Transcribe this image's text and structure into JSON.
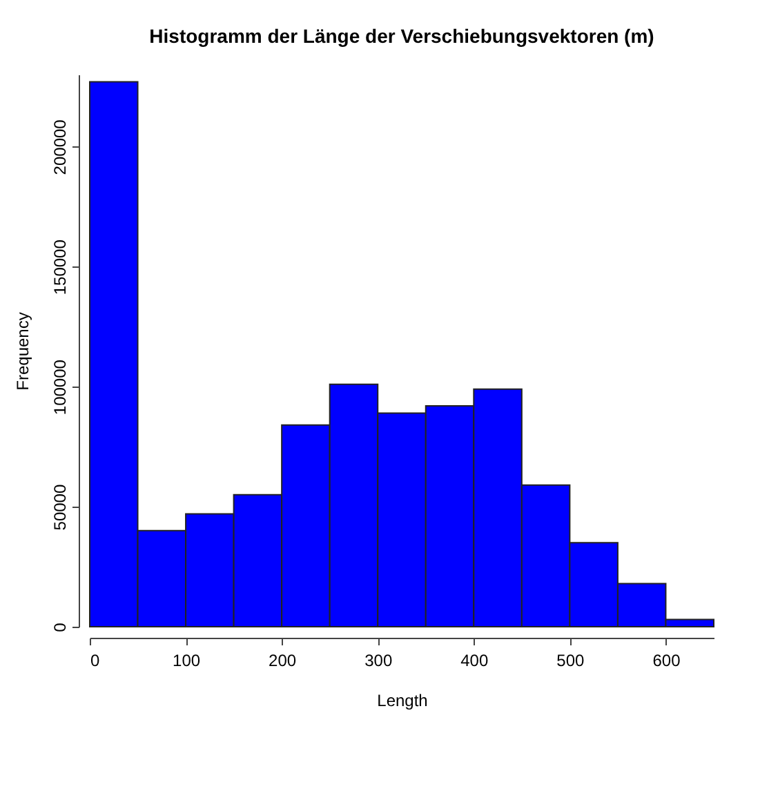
{
  "chart_data": {
    "type": "histogram",
    "title": "Histogramm der Länge der Verschiebungsvektoren (m)",
    "xlabel": "Length",
    "ylabel": "Frequency",
    "bins": [
      0,
      50,
      100,
      150,
      200,
      250,
      300,
      350,
      400,
      450,
      500,
      550,
      600,
      650
    ],
    "values": [
      227000,
      40000,
      47000,
      55000,
      84000,
      101000,
      89000,
      92000,
      99000,
      59000,
      35000,
      18000,
      3000
    ],
    "color": "#0000ff",
    "xlim": [
      0,
      650
    ],
    "xticks": [
      0,
      100,
      200,
      300,
      400,
      500,
      600
    ],
    "ylim": [
      0,
      230000
    ],
    "yticks": [
      0,
      50000,
      100000,
      150000,
      200000
    ],
    "grid": false
  }
}
